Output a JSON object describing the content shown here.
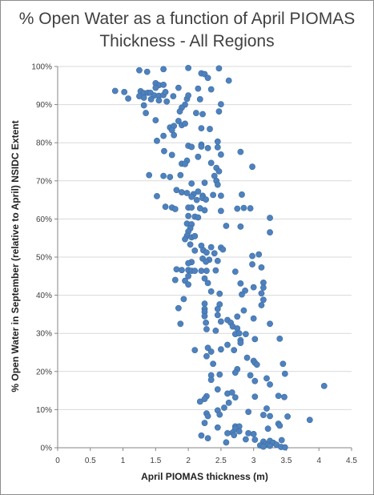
{
  "chart_data": {
    "type": "scatter",
    "title": "% Open Water as a function of April PIOMAS Thickness - All Regions",
    "xlabel": "April PIOMAS thickness (m)",
    "ylabel": "% Open Water  in September (relative to April) NSIDC Extent",
    "xlim": [
      0,
      4.5
    ],
    "ylim": [
      0,
      100
    ],
    "x_ticks": [
      "0",
      "0.5",
      "1",
      "1.5",
      "2",
      "2.5",
      "3",
      "3.5",
      "4",
      "4.5"
    ],
    "y_ticks": [
      "0%",
      "10%",
      "20%",
      "30%",
      "40%",
      "50%",
      "60%",
      "70%",
      "80%",
      "90%",
      "100%"
    ],
    "grid": "horizontal",
    "legend": "none",
    "marker_color": "#4f81bd",
    "points": [
      [
        1.25,
        99
      ],
      [
        1.37,
        98.6
      ],
      [
        1.62,
        99.3
      ],
      [
        2.0,
        99.6
      ],
      [
        2.47,
        99.5
      ],
      [
        2.2,
        98.2
      ],
      [
        2.25,
        98
      ],
      [
        2.3,
        97
      ],
      [
        2.62,
        96.3
      ],
      [
        1.5,
        95.6
      ],
      [
        1.55,
        95.1
      ],
      [
        1.62,
        95.2
      ],
      [
        1.5,
        94.4
      ],
      [
        1.85,
        94.4
      ],
      [
        2.15,
        94.2
      ],
      [
        2.35,
        94
      ],
      [
        0.88,
        93.6
      ],
      [
        1.02,
        93.3
      ],
      [
        1.27,
        93.5
      ],
      [
        1.32,
        93.0
      ],
      [
        1.38,
        93.1
      ],
      [
        1.42,
        93.1
      ],
      [
        1.48,
        92.4
      ],
      [
        1.55,
        92.3
      ],
      [
        1.62,
        92.5
      ],
      [
        1.65,
        93.3
      ],
      [
        1.25,
        92.2
      ],
      [
        1.08,
        91.6
      ],
      [
        1.32,
        91.8
      ],
      [
        1.43,
        91.4
      ],
      [
        1.55,
        91.1
      ],
      [
        1.67,
        90.8
      ],
      [
        1.77,
        92.2
      ],
      [
        1.98,
        91.5
      ],
      [
        2.0,
        92.4
      ],
      [
        2.18,
        91.4
      ],
      [
        1.32,
        89.8
      ],
      [
        1.95,
        90.0
      ],
      [
        1.9,
        89.2
      ],
      [
        2.5,
        90.1
      ],
      [
        2.47,
        88.2
      ],
      [
        1.87,
        88.2
      ],
      [
        1.35,
        87.8
      ],
      [
        2.12,
        87.8
      ],
      [
        2.22,
        87.5
      ],
      [
        1.5,
        85.9
      ],
      [
        1.85,
        85.7
      ],
      [
        1.9,
        84.6
      ],
      [
        1.95,
        85.0
      ],
      [
        1.72,
        84.0
      ],
      [
        1.78,
        84.4
      ],
      [
        1.75,
        83.3
      ],
      [
        2.2,
        83.8
      ],
      [
        2.33,
        83.6
      ],
      [
        1.78,
        82.0
      ],
      [
        1.62,
        81.8
      ],
      [
        1.52,
        80.5
      ],
      [
        2.45,
        80.3
      ],
      [
        2.2,
        79.5
      ],
      [
        2.0,
        79.2
      ],
      [
        2.05,
        78.9
      ],
      [
        2.2,
        79.0
      ],
      [
        2.3,
        78.6
      ],
      [
        2.45,
        78.8
      ],
      [
        2.8,
        77.6
      ],
      [
        1.63,
        77.8
      ],
      [
        1.75,
        76.8
      ],
      [
        2.5,
        76.9
      ],
      [
        2.15,
        76.3
      ],
      [
        1.98,
        75.3
      ],
      [
        1.9,
        74.5
      ],
      [
        1.95,
        74.4
      ],
      [
        2.35,
        74.7
      ],
      [
        2.98,
        73.7
      ],
      [
        2.43,
        73.4
      ],
      [
        2.47,
        72.5
      ],
      [
        1.88,
        71.5
      ],
      [
        1.4,
        71.5
      ],
      [
        1.62,
        71.3
      ],
      [
        1.72,
        71.0
      ],
      [
        2.4,
        71.3
      ],
      [
        2.43,
        70.0
      ],
      [
        2.25,
        69.5
      ],
      [
        2.05,
        69.3
      ],
      [
        2.45,
        69.0
      ],
      [
        1.82,
        67.6
      ],
      [
        1.9,
        67.0
      ],
      [
        1.98,
        66.8
      ],
      [
        2.08,
        66.5
      ],
      [
        2.15,
        67.2
      ],
      [
        2.22,
        66.1
      ],
      [
        2.38,
        66.3
      ],
      [
        2.5,
        66.1
      ],
      [
        2.82,
        66.4
      ],
      [
        2.05,
        65.8
      ],
      [
        2.13,
        65.0
      ],
      [
        2.22,
        65.5
      ],
      [
        1.52,
        66.0
      ],
      [
        2.27,
        65.1
      ],
      [
        1.65,
        63.2
      ],
      [
        1.75,
        63.0
      ],
      [
        1.8,
        62.6
      ],
      [
        2.0,
        63.0
      ],
      [
        2.05,
        63.0
      ],
      [
        2.25,
        62.3
      ],
      [
        2.18,
        62.8
      ],
      [
        2.85,
        62.9
      ],
      [
        2.95,
        62.8
      ],
      [
        2.75,
        62.7
      ],
      [
        2.5,
        62.1
      ],
      [
        2.0,
        60.8
      ],
      [
        2.1,
        60.6
      ],
      [
        2.15,
        60.4
      ],
      [
        3.25,
        60.3
      ],
      [
        1.98,
        58.8
      ],
      [
        2.05,
        58.6
      ],
      [
        2.03,
        57.5
      ],
      [
        2.58,
        58.2
      ],
      [
        2.0,
        56.7
      ],
      [
        1.98,
        55.6
      ],
      [
        2.05,
        55.2
      ],
      [
        2.1,
        55.5
      ],
      [
        2.8,
        58.0
      ],
      [
        3.25,
        56.5
      ],
      [
        1.95,
        54.7
      ],
      [
        2.03,
        53.3
      ],
      [
        2.2,
        53.0
      ],
      [
        2.35,
        52.6
      ],
      [
        2.5,
        52.5
      ],
      [
        2.53,
        52.0
      ],
      [
        2.1,
        51.7
      ],
      [
        2.23,
        51.8
      ],
      [
        2.28,
        51.2
      ],
      [
        2.4,
        51.0
      ],
      [
        3.08,
        50.7
      ],
      [
        2.98,
        50.3
      ],
      [
        2.22,
        49.6
      ],
      [
        2.32,
        49.3
      ],
      [
        2.27,
        48.8
      ],
      [
        2.45,
        49.0
      ],
      [
        2.05,
        48.7
      ],
      [
        2.0,
        48.4
      ],
      [
        2.98,
        48.1
      ],
      [
        3.12,
        47.3
      ],
      [
        1.82,
        46.8
      ],
      [
        1.9,
        46.6
      ],
      [
        2.0,
        46.6
      ],
      [
        2.05,
        46.4
      ],
      [
        2.1,
        46.4
      ],
      [
        2.2,
        46.4
      ],
      [
        2.28,
        46.4
      ],
      [
        2.42,
        46.5
      ],
      [
        2.72,
        46.2
      ],
      [
        2.0,
        45.0
      ],
      [
        2.25,
        44.4
      ],
      [
        1.8,
        44.0
      ],
      [
        1.95,
        43.8
      ],
      [
        2.3,
        43.2
      ],
      [
        2.0,
        42.8
      ],
      [
        2.8,
        43.1
      ],
      [
        3.15,
        43.3
      ],
      [
        3.15,
        42.0
      ],
      [
        3.0,
        42.1
      ],
      [
        2.87,
        41.2
      ],
      [
        2.35,
        41.0
      ],
      [
        2.48,
        40.4
      ],
      [
        2.82,
        40.2
      ],
      [
        3.12,
        40.5
      ],
      [
        3.15,
        38.8
      ],
      [
        1.93,
        39.0
      ],
      [
        2.25,
        37.8
      ],
      [
        2.48,
        37.6
      ],
      [
        3.12,
        37.4
      ],
      [
        1.85,
        36.6
      ],
      [
        2.25,
        36.4
      ],
      [
        2.45,
        36.4
      ],
      [
        2.85,
        36.0
      ],
      [
        2.25,
        35.6
      ],
      [
        2.45,
        34.8
      ],
      [
        3.0,
        33.9
      ],
      [
        2.25,
        34.5
      ],
      [
        2.75,
        34.4
      ],
      [
        2.6,
        33.5
      ],
      [
        2.5,
        33.1
      ],
      [
        2.65,
        32.8
      ],
      [
        2.27,
        32.8
      ],
      [
        1.88,
        32.5
      ],
      [
        3.25,
        32.5
      ],
      [
        2.68,
        31.8
      ],
      [
        2.75,
        31.3
      ],
      [
        2.28,
        31.1
      ],
      [
        2.42,
        30.7
      ],
      [
        2.72,
        29.8
      ],
      [
        2.78,
        30.0
      ],
      [
        2.88,
        29.8
      ],
      [
        3.02,
        28.5
      ],
      [
        2.8,
        28.2
      ],
      [
        3.4,
        28.6
      ],
      [
        2.8,
        27.5
      ],
      [
        2.6,
        27.0
      ],
      [
        2.3,
        26.2
      ],
      [
        2.1,
        25.6
      ],
      [
        2.5,
        25.8
      ],
      [
        2.7,
        25.6
      ],
      [
        2.35,
        25.2
      ],
      [
        2.28,
        24.0
      ],
      [
        2.9,
        23.6
      ],
      [
        3.0,
        22.8
      ],
      [
        3.02,
        22.3
      ],
      [
        3.05,
        21.8
      ],
      [
        2.38,
        22.0
      ],
      [
        3.45,
        22.0
      ],
      [
        2.75,
        20.6
      ],
      [
        2.72,
        19.7
      ],
      [
        2.35,
        19.0
      ],
      [
        2.48,
        19.2
      ],
      [
        2.95,
        19.0
      ],
      [
        3.48,
        19.4
      ],
      [
        3.2,
        18.2
      ],
      [
        2.35,
        17.8
      ],
      [
        3.02,
        17.5
      ],
      [
        3.25,
        16.6
      ],
      [
        4.08,
        16.2
      ],
      [
        2.45,
        15.3
      ],
      [
        2.6,
        14.2
      ],
      [
        2.67,
        14.5
      ],
      [
        2.28,
        13.5
      ],
      [
        2.72,
        13.2
      ],
      [
        2.25,
        12.8
      ],
      [
        3.02,
        13.4
      ],
      [
        2.18,
        12.1
      ],
      [
        3.38,
        13.6
      ],
      [
        3.47,
        13.3
      ],
      [
        2.62,
        11.8
      ],
      [
        2.55,
        10.5
      ],
      [
        3.2,
        10.3
      ],
      [
        2.45,
        9.8
      ],
      [
        2.92,
        9.4
      ],
      [
        2.28,
        9.0
      ],
      [
        2.48,
        8.7
      ],
      [
        3.15,
        8.6
      ],
      [
        3.25,
        8.3
      ],
      [
        2.3,
        8.3
      ],
      [
        3.52,
        8.2
      ],
      [
        3.86,
        7.3
      ],
      [
        2.25,
        6.5
      ],
      [
        3.38,
        6.3
      ],
      [
        3.4,
        5.8
      ],
      [
        2.72,
        5.6
      ],
      [
        2.78,
        5.6
      ],
      [
        2.45,
        5.3
      ],
      [
        2.72,
        5.0
      ],
      [
        3.22,
        5.0
      ],
      [
        2.78,
        4.3
      ],
      [
        2.6,
        3.8
      ],
      [
        2.92,
        3.8
      ],
      [
        2.68,
        4.0
      ],
      [
        2.7,
        3.3
      ],
      [
        3.0,
        3.6
      ],
      [
        2.2,
        3.2
      ],
      [
        2.3,
        2.5
      ],
      [
        3.15,
        1.6
      ],
      [
        3.18,
        1.0
      ],
      [
        2.88,
        2.2
      ],
      [
        3.02,
        2.1
      ],
      [
        3.25,
        1.8
      ],
      [
        3.43,
        2.0
      ],
      [
        3.3,
        1.3
      ],
      [
        3.22,
        0.8
      ],
      [
        2.58,
        1.4
      ],
      [
        3.1,
        0.6
      ],
      [
        3.15,
        0.3
      ],
      [
        3.25,
        0.5
      ],
      [
        3.35,
        0.8
      ],
      [
        3.42,
        0.2
      ],
      [
        3.48,
        0.1
      ]
    ]
  }
}
